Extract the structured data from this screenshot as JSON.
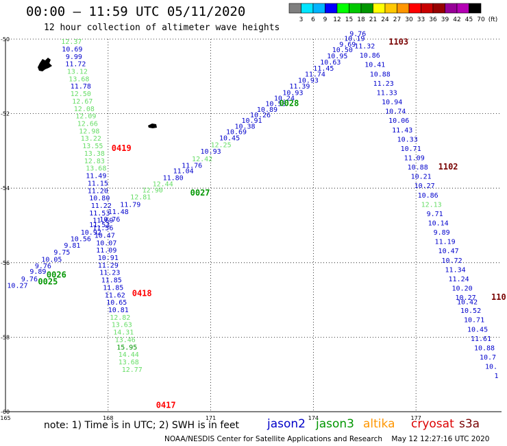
{
  "header": {
    "title": "00:00 – 11:59 UTC 05/11/2020",
    "subtitle": "12 hour collection of altimeter wave heights"
  },
  "color_scale": {
    "ticks": [
      "3",
      "6",
      "9",
      "12",
      "15",
      "18",
      "21",
      "24",
      "27",
      "30",
      "33",
      "36",
      "39",
      "42",
      "45",
      "70",
      "(ft)"
    ],
    "colors": [
      "#7f7f7f",
      "#00e5ff",
      "#00b4ff",
      "#0000ff",
      "#00ff00",
      "#00c800",
      "#009600",
      "#ffff00",
      "#ffc800",
      "#ff9600",
      "#ff0000",
      "#c80000",
      "#960000",
      "#960096",
      "#b400b4",
      "#000000"
    ]
  },
  "footer": {
    "note": "note: 1) Time is in UTC; 2) SWH is in feet",
    "credit": "NOAA/NESDIS Center for Satellite Applications and Research    May 12 12:27:16 UTC 2020",
    "missions": [
      {
        "name": "jason2",
        "color": "#0000c8"
      },
      {
        "name": "jason3",
        "color": "#009600"
      },
      {
        "name": "altika",
        "color": "#ff9600"
      },
      {
        "name": "cryosat",
        "color": "#dc0000"
      },
      {
        "name": "s3a",
        "color": "#780000"
      }
    ]
  },
  "chart_data": {
    "type": "scatter",
    "title": "12 hour collection of altimeter wave heights",
    "x_ticks": [
      "165",
      "168",
      "171",
      "174",
      "177"
    ],
    "y_ticks": [
      "-50",
      "-52",
      "-54",
      "-56",
      "-58",
      "-60"
    ],
    "xlim": [
      165,
      179.5
    ],
    "ylim": [
      -60,
      -50
    ],
    "grid": true,
    "tracks": [
      {
        "id": "track-a",
        "mission": "cryosat",
        "time_labels": [
          {
            "text": "0419",
            "lon": 168.1,
            "lat": -53.0,
            "color": "#ff0000"
          },
          {
            "text": "0418",
            "lon": 168.7,
            "lat": -56.9,
            "color": "#ff0000"
          },
          {
            "text": "0417",
            "lon": 169.4,
            "lat": -59.9,
            "color": "#ff0000"
          }
        ],
        "points": [
          {
            "v": "12.37",
            "lon": 166.93,
            "lat": -50.13,
            "c": "#66dd66"
          },
          {
            "v": "10.69",
            "lon": 166.95,
            "lat": -50.33,
            "c": "#0000cc"
          },
          {
            "v": "9.99",
            "lon": 167.0,
            "lat": -50.53,
            "c": "#0000cc"
          },
          {
            "v": "11.72",
            "lon": 167.05,
            "lat": -50.73,
            "c": "#0000cc"
          },
          {
            "v": "13.12",
            "lon": 167.1,
            "lat": -50.93,
            "c": "#66dd66"
          },
          {
            "v": "13.68",
            "lon": 167.15,
            "lat": -51.13,
            "c": "#66dd66"
          },
          {
            "v": "11.78",
            "lon": 167.2,
            "lat": -51.33,
            "c": "#0000cc"
          },
          {
            "v": "12.50",
            "lon": 167.2,
            "lat": -51.53,
            "c": "#66dd66"
          },
          {
            "v": "12.67",
            "lon": 167.25,
            "lat": -51.73,
            "c": "#66dd66"
          },
          {
            "v": "12.08",
            "lon": 167.3,
            "lat": -51.93,
            "c": "#66dd66"
          },
          {
            "v": "12.09",
            "lon": 167.35,
            "lat": -52.13,
            "c": "#66dd66"
          },
          {
            "v": "12.66",
            "lon": 167.4,
            "lat": -52.33,
            "c": "#66dd66"
          },
          {
            "v": "12.98",
            "lon": 167.45,
            "lat": -52.53,
            "c": "#66dd66"
          },
          {
            "v": "13.22",
            "lon": 167.5,
            "lat": -52.73,
            "c": "#66dd66"
          },
          {
            "v": "13.55",
            "lon": 167.55,
            "lat": -52.93,
            "c": "#66dd66"
          },
          {
            "v": "13.38",
            "lon": 167.6,
            "lat": -53.13,
            "c": "#66dd66"
          },
          {
            "v": "12.83",
            "lon": 167.6,
            "lat": -53.33,
            "c": "#66dd66"
          },
          {
            "v": "13.68",
            "lon": 167.65,
            "lat": -53.53,
            "c": "#66dd66"
          },
          {
            "v": "11.49",
            "lon": 167.65,
            "lat": -53.73,
            "c": "#0000cc"
          },
          {
            "v": "11.15",
            "lon": 167.7,
            "lat": -53.93,
            "c": "#0000cc"
          },
          {
            "v": "11.20",
            "lon": 167.7,
            "lat": -54.13,
            "c": "#0000cc"
          },
          {
            "v": "10.80",
            "lon": 167.75,
            "lat": -54.33,
            "c": "#0000cc"
          },
          {
            "v": "11.22",
            "lon": 167.8,
            "lat": -54.53,
            "c": "#0000cc"
          },
          {
            "v": "11.53",
            "lon": 167.75,
            "lat": -54.73,
            "c": "#0000cc"
          },
          {
            "v": "11.69",
            "lon": 167.85,
            "lat": -54.93,
            "c": "#0000cc"
          },
          {
            "v": "11.56",
            "lon": 167.85,
            "lat": -55.13,
            "c": "#0000cc"
          },
          {
            "v": "10.47",
            "lon": 167.9,
            "lat": -55.33,
            "c": "#0000cc"
          },
          {
            "v": "10.07",
            "lon": 167.95,
            "lat": -55.53,
            "c": "#0000cc"
          },
          {
            "v": "11.09",
            "lon": 167.95,
            "lat": -55.73,
            "c": "#0000cc"
          },
          {
            "v": "10.91",
            "lon": 168.0,
            "lat": -55.93,
            "c": "#0000cc"
          },
          {
            "v": "11.29",
            "lon": 168.0,
            "lat": -56.13,
            "c": "#0000cc"
          },
          {
            "v": "11.23",
            "lon": 168.05,
            "lat": -56.33,
            "c": "#0000cc"
          },
          {
            "v": "11.85",
            "lon": 168.1,
            "lat": -56.53,
            "c": "#0000cc"
          },
          {
            "v": "11.85",
            "lon": 168.15,
            "lat": -56.73,
            "c": "#0000cc"
          },
          {
            "v": "11.62",
            "lon": 168.2,
            "lat": -56.93,
            "c": "#0000cc"
          },
          {
            "v": "10.65",
            "lon": 168.25,
            "lat": -57.13,
            "c": "#0000cc"
          },
          {
            "v": "10.81",
            "lon": 168.3,
            "lat": -57.33,
            "c": "#0000cc"
          },
          {
            "v": "12.82",
            "lon": 168.35,
            "lat": -57.53,
            "c": "#66dd66"
          },
          {
            "v": "13.63",
            "lon": 168.4,
            "lat": -57.73,
            "c": "#66dd66"
          },
          {
            "v": "14.31",
            "lon": 168.45,
            "lat": -57.93,
            "c": "#66dd66"
          },
          {
            "v": "13.46",
            "lon": 168.5,
            "lat": -58.13,
            "c": "#66dd66"
          },
          {
            "v": "15.95",
            "lon": 168.55,
            "lat": -58.33,
            "c": "#009600"
          },
          {
            "v": "14.44",
            "lon": 168.6,
            "lat": -58.53,
            "c": "#66dd66"
          },
          {
            "v": "13.68",
            "lon": 168.6,
            "lat": -58.73,
            "c": "#66dd66"
          },
          {
            "v": "12.77",
            "lon": 168.7,
            "lat": -58.93,
            "c": "#66dd66"
          }
        ]
      },
      {
        "id": "track-b",
        "mission": "jason3",
        "time_labels": [
          {
            "text": "0025",
            "lon": 165.95,
            "lat": -56.58,
            "color": "#009600"
          },
          {
            "text": "0026",
            "lon": 166.2,
            "lat": -56.4,
            "color": "#009600"
          },
          {
            "text": "0027",
            "lon": 170.4,
            "lat": -54.2,
            "color": "#009600"
          },
          {
            "text": "0028",
            "lon": 173.0,
            "lat": -51.8,
            "color": "#009600"
          }
        ],
        "points": [
          {
            "v": "10.27",
            "lon": 165.35,
            "lat": -56.68,
            "c": "#0000cc"
          },
          {
            "v": "9.76",
            "lon": 165.7,
            "lat": -56.5,
            "c": "#0000cc"
          },
          {
            "v": "9.89",
            "lon": 165.95,
            "lat": -56.3,
            "c": "#0000cc"
          },
          {
            "v": "9.76",
            "lon": 166.1,
            "lat": -56.15,
            "c": "#0000cc"
          },
          {
            "v": "10.05",
            "lon": 166.35,
            "lat": -55.98,
            "c": "#0000cc"
          },
          {
            "v": "9.75",
            "lon": 166.65,
            "lat": -55.78,
            "c": "#0000cc"
          },
          {
            "v": "9.81",
            "lon": 166.95,
            "lat": -55.6,
            "c": "#0000cc"
          },
          {
            "v": "10.56",
            "lon": 167.2,
            "lat": -55.42,
            "c": "#0000cc"
          },
          {
            "v": "10.92",
            "lon": 167.5,
            "lat": -55.25,
            "c": "#0000cc"
          },
          {
            "v": "11.53",
            "lon": 167.75,
            "lat": -55.05,
            "c": "#0000cc"
          },
          {
            "v": "10.76",
            "lon": 168.05,
            "lat": -54.9,
            "c": "#0000cc"
          },
          {
            "v": "11.48",
            "lon": 168.3,
            "lat": -54.7,
            "c": "#0000cc"
          },
          {
            "v": "11.79",
            "lon": 168.65,
            "lat": -54.5,
            "c": "#0000cc"
          },
          {
            "v": "12.81",
            "lon": 168.95,
            "lat": -54.3,
            "c": "#66dd66"
          },
          {
            "v": "12.90",
            "lon": 169.3,
            "lat": -54.12,
            "c": "#66dd66"
          },
          {
            "v": "12.44",
            "lon": 169.6,
            "lat": -53.95,
            "c": "#66dd66"
          },
          {
            "v": "11.80",
            "lon": 169.9,
            "lat": -53.78,
            "c": "#0000cc"
          },
          {
            "v": "11.04",
            "lon": 170.2,
            "lat": -53.6,
            "c": "#0000cc"
          },
          {
            "v": "11.76",
            "lon": 170.45,
            "lat": -53.45,
            "c": "#0000cc"
          },
          {
            "v": "12.42",
            "lon": 170.75,
            "lat": -53.28,
            "c": "#66dd66"
          },
          {
            "v": "10.93",
            "lon": 171.0,
            "lat": -53.08,
            "c": "#0000cc"
          },
          {
            "v": "12.25",
            "lon": 171.3,
            "lat": -52.9,
            "c": "#66dd66"
          },
          {
            "v": "10.45",
            "lon": 171.55,
            "lat": -52.72,
            "c": "#0000cc"
          },
          {
            "v": "10.69",
            "lon": 171.75,
            "lat": -52.55,
            "c": "#0000cc"
          },
          {
            "v": "10.38",
            "lon": 172.0,
            "lat": -52.4,
            "c": "#0000cc"
          },
          {
            "v": "10.91",
            "lon": 172.2,
            "lat": -52.25,
            "c": "#0000cc"
          },
          {
            "v": "10.26",
            "lon": 172.45,
            "lat": -52.1,
            "c": "#0000cc"
          },
          {
            "v": "10.89",
            "lon": 172.65,
            "lat": -51.95,
            "c": "#0000cc"
          },
          {
            "v": "10.53",
            "lon": 172.9,
            "lat": -51.8,
            "c": "#0000cc"
          },
          {
            "v": "10.24",
            "lon": 173.15,
            "lat": -51.65,
            "c": "#0000cc"
          },
          {
            "v": "10.93",
            "lon": 173.4,
            "lat": -51.5,
            "c": "#0000cc"
          },
          {
            "v": "11.39",
            "lon": 173.6,
            "lat": -51.33,
            "c": "#0000cc"
          },
          {
            "v": "10.93",
            "lon": 173.85,
            "lat": -51.17,
            "c": "#0000cc"
          },
          {
            "v": "11.74",
            "lon": 174.05,
            "lat": -51.0,
            "c": "#0000cc"
          },
          {
            "v": "11.45",
            "lon": 174.3,
            "lat": -50.85,
            "c": "#0000cc"
          },
          {
            "v": "10.63",
            "lon": 174.5,
            "lat": -50.68,
            "c": "#0000cc"
          },
          {
            "v": "10.95",
            "lon": 174.7,
            "lat": -50.52,
            "c": "#0000cc"
          },
          {
            "v": "10.50",
            "lon": 174.85,
            "lat": -50.35,
            "c": "#0000cc"
          },
          {
            "v": "9.69",
            "lon": 175.0,
            "lat": -50.2,
            "c": "#0000cc"
          },
          {
            "v": "10.19",
            "lon": 175.2,
            "lat": -50.05,
            "c": "#0000cc"
          }
        ]
      },
      {
        "id": "track-c",
        "mission": "s3a",
        "time_labels": [
          {
            "text": "1103",
            "lon": 176.2,
            "lat": -50.15,
            "color": "#780000"
          },
          {
            "text": "1102",
            "lon": 177.65,
            "lat": -53.5,
            "color": "#780000"
          },
          {
            "text": "110",
            "lon": 179.2,
            "lat": -57.0,
            "color": "#780000"
          }
        ],
        "points": [
          {
            "v": "9.76",
            "lon": 175.3,
            "lat": -49.92,
            "c": "#0000cc"
          },
          {
            "v": "11.32",
            "lon": 175.5,
            "lat": -50.25,
            "c": "#0000cc"
          },
          {
            "v": "10.86",
            "lon": 175.65,
            "lat": -50.5,
            "c": "#0000cc"
          },
          {
            "v": "10.41",
            "lon": 175.8,
            "lat": -50.75,
            "c": "#0000cc"
          },
          {
            "v": "10.88",
            "lon": 175.95,
            "lat": -51.0,
            "c": "#0000cc"
          },
          {
            "v": "11.23",
            "lon": 176.05,
            "lat": -51.25,
            "c": "#0000cc"
          },
          {
            "v": "11.33",
            "lon": 176.15,
            "lat": -51.5,
            "c": "#0000cc"
          },
          {
            "v": "10.94",
            "lon": 176.3,
            "lat": -51.75,
            "c": "#0000cc"
          },
          {
            "v": "10.74",
            "lon": 176.4,
            "lat": -52.0,
            "c": "#0000cc"
          },
          {
            "v": "10.06",
            "lon": 176.5,
            "lat": -52.25,
            "c": "#0000cc"
          },
          {
            "v": "11.43",
            "lon": 176.6,
            "lat": -52.5,
            "c": "#0000cc"
          },
          {
            "v": "10.33",
            "lon": 176.75,
            "lat": -52.75,
            "c": "#0000cc"
          },
          {
            "v": "10.71",
            "lon": 176.85,
            "lat": -53.0,
            "c": "#0000cc"
          },
          {
            "v": "11.09",
            "lon": 176.95,
            "lat": -53.25,
            "c": "#0000cc"
          },
          {
            "v": "10.88",
            "lon": 177.05,
            "lat": -53.5,
            "c": "#0000cc"
          },
          {
            "v": "10.21",
            "lon": 177.15,
            "lat": -53.75,
            "c": "#0000cc"
          },
          {
            "v": "10.27",
            "lon": 177.25,
            "lat": -54.0,
            "c": "#0000cc"
          },
          {
            "v": "10.86",
            "lon": 177.35,
            "lat": -54.25,
            "c": "#0000cc"
          },
          {
            "v": "12.13",
            "lon": 177.45,
            "lat": -54.5,
            "c": "#66dd66"
          },
          {
            "v": "9.71",
            "lon": 177.55,
            "lat": -54.75,
            "c": "#0000cc"
          },
          {
            "v": "10.14",
            "lon": 177.65,
            "lat": -55.0,
            "c": "#0000cc"
          },
          {
            "v": "9.89",
            "lon": 177.75,
            "lat": -55.25,
            "c": "#0000cc"
          },
          {
            "v": "11.19",
            "lon": 177.85,
            "lat": -55.5,
            "c": "#0000cc"
          },
          {
            "v": "10.47",
            "lon": 177.95,
            "lat": -55.75,
            "c": "#0000cc"
          },
          {
            "v": "10.72",
            "lon": 178.05,
            "lat": -56.0,
            "c": "#0000cc"
          },
          {
            "v": "11.34",
            "lon": 178.15,
            "lat": -56.25,
            "c": "#0000cc"
          },
          {
            "v": "11.24",
            "lon": 178.25,
            "lat": -56.5,
            "c": "#0000cc"
          },
          {
            "v": "10.20",
            "lon": 178.35,
            "lat": -56.75,
            "c": "#0000cc"
          },
          {
            "v": "10.27",
            "lon": 178.45,
            "lat": -57.0,
            "c": "#0000cc"
          },
          {
            "v": "10.42",
            "lon": 178.5,
            "lat": -57.12,
            "c": "#0000cc"
          },
          {
            "v": "10.52",
            "lon": 178.6,
            "lat": -57.35,
            "c": "#0000cc"
          },
          {
            "v": "10.71",
            "lon": 178.7,
            "lat": -57.6,
            "c": "#0000cc"
          },
          {
            "v": "10.45",
            "lon": 178.8,
            "lat": -57.85,
            "c": "#0000cc"
          },
          {
            "v": "11.61",
            "lon": 178.9,
            "lat": -58.1,
            "c": "#0000cc"
          },
          {
            "v": "10.88",
            "lon": 179.0,
            "lat": -58.35,
            "c": "#0000cc"
          },
          {
            "v": "10.7",
            "lon": 179.1,
            "lat": -58.6,
            "c": "#0000cc"
          },
          {
            "v": "10.",
            "lon": 179.2,
            "lat": -58.85,
            "c": "#0000cc"
          },
          {
            "v": "1",
            "lon": 179.35,
            "lat": -59.1,
            "c": "#0000cc"
          }
        ]
      }
    ]
  }
}
